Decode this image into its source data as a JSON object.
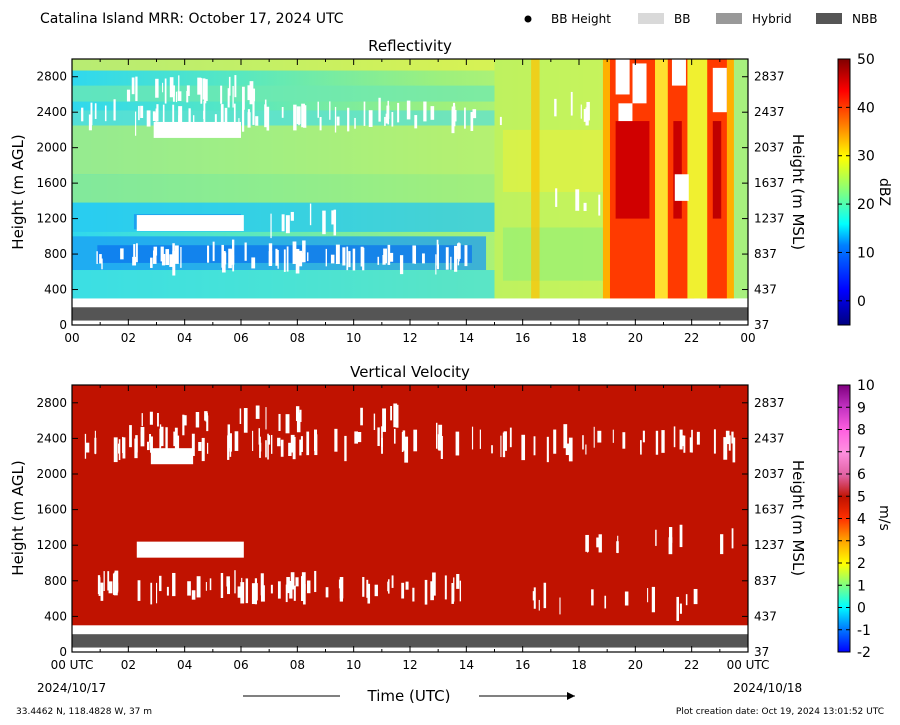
{
  "header": {
    "title": "Catalina Island MRR:  October 17, 2024 UTC",
    "legend": [
      {
        "label": "BB Height",
        "marker": "dot",
        "color": "#000000"
      },
      {
        "label": "BB",
        "marker": "swatch",
        "color": "#d9d9d9"
      },
      {
        "label": "Hybrid",
        "marker": "swatch",
        "color": "#999999"
      },
      {
        "label": "NBB",
        "marker": "swatch",
        "color": "#555555"
      }
    ]
  },
  "footer": {
    "location": "33.4462 N, 118.4828 W, 37 m",
    "creation_date": "Plot creation date: Oct 19, 2024 13:01:52 UTC",
    "time_axis_label": "Time (UTC)",
    "start_date": "2024/10/17",
    "end_date": "2024/10/18"
  },
  "chart_data": [
    {
      "type": "heatmap",
      "title": "Reflectivity",
      "xlabel": "",
      "ylabel": "Height (m AGL)",
      "ylabel_right": "Height (m MSL)",
      "x_ticks": [
        "00",
        "02",
        "04",
        "06",
        "08",
        "10",
        "12",
        "14",
        "16",
        "18",
        "20",
        "22",
        "00"
      ],
      "x_range_hours": [
        0,
        24
      ],
      "y_ticks": [
        0,
        400,
        800,
        1200,
        1600,
        2000,
        2400,
        2800
      ],
      "y_ticks_right": [
        "37",
        "437",
        "837",
        "1237",
        "1637",
        "2037",
        "2437",
        "2837"
      ],
      "ylim": [
        0,
        3000
      ],
      "data_range_m": [
        300,
        3000
      ],
      "nbb_band_m": [
        50,
        200
      ],
      "colorbar": {
        "label": "dBZ",
        "range": [
          -5,
          50
        ],
        "ticks": [
          0,
          10,
          20,
          30,
          40,
          50
        ]
      },
      "colormap": "jet",
      "colors": [
        "#000080",
        "#0000ff",
        "#0080ff",
        "#00ffff",
        "#80ff80",
        "#ffff00",
        "#ff8000",
        "#ff0000",
        "#800000"
      ],
      "features": [
        {
          "t": [
            0,
            15
          ],
          "h": [
            300,
            3000
          ],
          "dbz": 14,
          "note": "light echo with blue layers near 800 m and 1200 m"
        },
        {
          "t": [
            16,
            19
          ],
          "h": [
            300,
            3000
          ],
          "dbz": 24,
          "note": "moderate echo"
        },
        {
          "t": [
            19.2,
            20.6
          ],
          "h": [
            300,
            3000
          ],
          "dbz": 42,
          "note": "rain shaft"
        },
        {
          "t": [
            21.2,
            21.8
          ],
          "h": [
            300,
            3000
          ],
          "dbz": 40,
          "note": "rain shaft"
        },
        {
          "t": [
            22.6,
            23.2
          ],
          "h": [
            300,
            3000
          ],
          "dbz": 38,
          "note": "rain shaft"
        }
      ]
    },
    {
      "type": "heatmap",
      "title": "Vertical Velocity",
      "xlabel": "Time (UTC)",
      "ylabel": "Height (m AGL)",
      "ylabel_right": "Height (m MSL)",
      "x_ticks": [
        "00 UTC",
        "02",
        "04",
        "06",
        "08",
        "10",
        "12",
        "14",
        "16",
        "18",
        "20",
        "22",
        "00 UTC"
      ],
      "x_range_hours": [
        0,
        24
      ],
      "y_ticks": [
        0,
        400,
        800,
        1200,
        1600,
        2000,
        2400,
        2800
      ],
      "y_ticks_right": [
        "37",
        "437",
        "837",
        "1237",
        "1637",
        "2037",
        "2437",
        "2837"
      ],
      "ylim": [
        0,
        3000
      ],
      "data_range_m": [
        300,
        3000
      ],
      "nbb_band_m": [
        50,
        200
      ],
      "colorbar": {
        "label": "m/s",
        "range": [
          -2,
          10
        ],
        "ticks": [
          -2,
          -1,
          0,
          1,
          2,
          3,
          4,
          5,
          6,
          7,
          8,
          9,
          10
        ]
      },
      "fill_value": 6,
      "fill_color": "#c01200"
    }
  ]
}
